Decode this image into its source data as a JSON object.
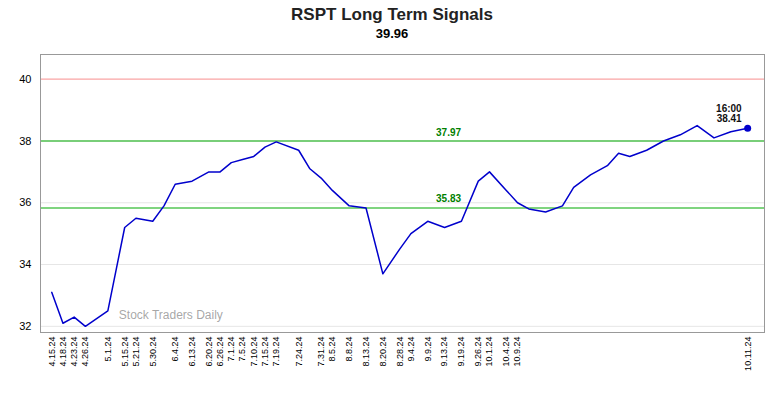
{
  "chart_data": {
    "type": "line",
    "title": "RSPT Long Term Signals",
    "subtitle": "39.96",
    "x": [
      0,
      2,
      4,
      6,
      10,
      13,
      15,
      18,
      20,
      22,
      25,
      28,
      30,
      32,
      34,
      36,
      38,
      40,
      44,
      46,
      48,
      50,
      53,
      56,
      59,
      62,
      64,
      67,
      70,
      73,
      76,
      78,
      81,
      83,
      85,
      88,
      91,
      93,
      96,
      99,
      101,
      103,
      106,
      109,
      112,
      115,
      118,
      121,
      124
    ],
    "values": [
      33.1,
      32.1,
      32.3,
      32.0,
      32.5,
      35.2,
      35.5,
      35.4,
      35.9,
      36.6,
      36.7,
      37.0,
      37.0,
      37.3,
      37.4,
      37.5,
      37.8,
      37.97,
      37.7,
      37.1,
      36.8,
      36.4,
      35.9,
      35.83,
      33.7,
      34.5,
      35.0,
      35.4,
      35.2,
      35.4,
      36.7,
      37.0,
      36.4,
      36.0,
      35.8,
      35.7,
      35.9,
      36.5,
      36.9,
      37.2,
      37.6,
      37.5,
      37.7,
      38.0,
      38.2,
      38.5,
      38.1,
      38.3,
      38.41
    ],
    "color": "#0000cc",
    "xlim": [
      -2,
      127
    ],
    "xticks": [
      {
        "value": 0,
        "label": "4.15.24"
      },
      {
        "value": 2,
        "label": "4.18.24"
      },
      {
        "value": 4,
        "label": "4.23.24"
      },
      {
        "value": 6,
        "label": "4.26.24"
      },
      {
        "value": 10,
        "label": "5.1.24"
      },
      {
        "value": 13,
        "label": "5.15.24"
      },
      {
        "value": 15,
        "label": "5.21.24"
      },
      {
        "value": 18,
        "label": "5.30.24"
      },
      {
        "value": 22,
        "label": "6.4.24"
      },
      {
        "value": 25,
        "label": "6.13.24"
      },
      {
        "value": 28,
        "label": "6.20.24"
      },
      {
        "value": 30,
        "label": "6.26.24"
      },
      {
        "value": 32,
        "label": "7.1.24"
      },
      {
        "value": 34,
        "label": "7.5.24"
      },
      {
        "value": 36,
        "label": "7.10.24"
      },
      {
        "value": 38,
        "label": "7.15.24"
      },
      {
        "value": 40,
        "label": "7.19.24"
      },
      {
        "value": 44,
        "label": "7.24.24"
      },
      {
        "value": 48,
        "label": "7.31.24"
      },
      {
        "value": 50,
        "label": "8.5.24"
      },
      {
        "value": 53,
        "label": "8.8.24"
      },
      {
        "value": 56,
        "label": "8.13.24"
      },
      {
        "value": 59,
        "label": "8.20.24"
      },
      {
        "value": 62,
        "label": "8.28.24"
      },
      {
        "value": 64,
        "label": "9.4.24"
      },
      {
        "value": 67,
        "label": "9.9.24"
      },
      {
        "value": 70,
        "label": "9.13.24"
      },
      {
        "value": 73,
        "label": "9.19.24"
      },
      {
        "value": 76,
        "label": "9.26.24"
      },
      {
        "value": 78,
        "label": "10.1.24"
      },
      {
        "value": 81,
        "label": "10.4.24"
      },
      {
        "value": 83,
        "label": "10.9.24"
      },
      {
        "value": 124,
        "label": "10.11.24"
      }
    ],
    "ylim": [
      31.8,
      40.8
    ],
    "yticks": [
      32,
      34,
      36,
      38,
      40
    ],
    "grid": true,
    "reference_lines": [
      {
        "value": 40.0,
        "color": "#ffaaaa"
      },
      {
        "value": 38.0,
        "color": "#00aa00"
      },
      {
        "value": 35.83,
        "color": "#00aa00"
      }
    ],
    "endpoint": {
      "x": 124,
      "y": 38.41
    },
    "annotations": [
      {
        "text": "37.97",
        "x": 74,
        "y": 37.97,
        "color": "green"
      },
      {
        "text": "35.83",
        "x": 74,
        "y": 35.83,
        "color": "green"
      },
      {
        "text": "16:00\n38.41",
        "x": 124,
        "y": 38.41,
        "color": "#111111"
      }
    ],
    "watermark": "Stock Traders Daily"
  }
}
